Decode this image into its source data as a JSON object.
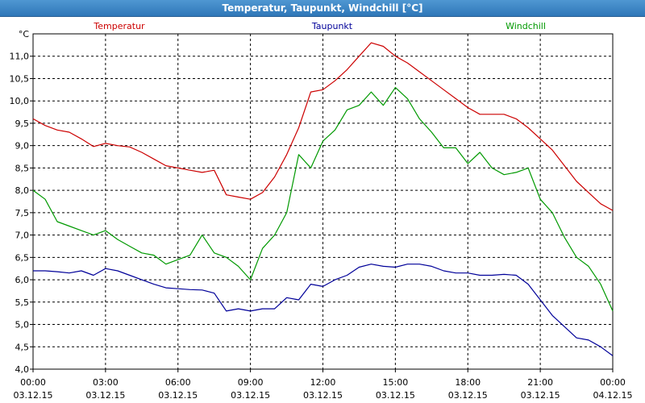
{
  "window": {
    "title": "Temperatur, Taupunkt, Windchill [°C]"
  },
  "chart_data": {
    "type": "line",
    "title": "Temperatur, Taupunkt, Windchill [°C]",
    "ylabel": "°C",
    "ylim": [
      4.0,
      11.5
    ],
    "yticks": [
      "4,0",
      "4,5",
      "5,0",
      "5,5",
      "6,0",
      "6,5",
      "7,0",
      "7,5",
      "8,0",
      "8,5",
      "9,0",
      "9,5",
      "10,0",
      "10,5",
      "11,0"
    ],
    "xlim": [
      0,
      24
    ],
    "xticks": [
      {
        "time": "00:00",
        "date": "03.12.15"
      },
      {
        "time": "03:00",
        "date": "03.12.15"
      },
      {
        "time": "06:00",
        "date": "03.12.15"
      },
      {
        "time": "09:00",
        "date": "03.12.15"
      },
      {
        "time": "12:00",
        "date": "03.12.15"
      },
      {
        "time": "15:00",
        "date": "03.12.15"
      },
      {
        "time": "18:00",
        "date": "03.12.15"
      },
      {
        "time": "21:00",
        "date": "03.12.15"
      },
      {
        "time": "00:00",
        "date": "04.12.15"
      }
    ],
    "grid": true,
    "legend_position": "top",
    "series": [
      {
        "name": "Temperatur",
        "color": "#cc0000",
        "x": [
          0,
          0.5,
          1,
          1.5,
          2,
          2.5,
          3,
          3.5,
          4,
          4.5,
          5,
          5.5,
          6,
          6.5,
          7,
          7.5,
          8,
          8.5,
          9,
          9.5,
          10,
          10.5,
          11,
          11.5,
          12,
          12.5,
          13,
          13.5,
          14,
          14.5,
          15,
          15.5,
          16,
          16.5,
          17,
          17.5,
          18,
          18.5,
          19,
          19.5,
          20,
          20.5,
          21,
          21.5,
          22,
          22.5,
          23,
          23.5,
          24
        ],
        "values": [
          9.6,
          9.45,
          9.35,
          9.3,
          9.15,
          8.98,
          9.05,
          9.0,
          8.97,
          8.85,
          8.7,
          8.55,
          8.5,
          8.45,
          8.4,
          8.45,
          7.9,
          7.85,
          7.8,
          7.95,
          8.3,
          8.8,
          9.4,
          10.2,
          10.25,
          10.45,
          10.7,
          11.0,
          11.3,
          11.22,
          11.0,
          10.85,
          10.65,
          10.45,
          10.25,
          10.05,
          9.85,
          9.7,
          9.7,
          9.7,
          9.6,
          9.4,
          9.15,
          8.9,
          8.55,
          8.2,
          7.95,
          7.7,
          7.55
        ]
      },
      {
        "name": "Taupunkt",
        "color": "#000099",
        "x": [
          0,
          0.5,
          1,
          1.5,
          2,
          2.5,
          3,
          3.5,
          4,
          4.5,
          5,
          5.5,
          6,
          6.5,
          7,
          7.5,
          8,
          8.5,
          9,
          9.5,
          10,
          10.5,
          11,
          11.5,
          12,
          12.5,
          13,
          13.5,
          14,
          14.5,
          15,
          15.5,
          16,
          16.5,
          17,
          17.5,
          18,
          18.5,
          19,
          19.5,
          20,
          20.5,
          21,
          21.5,
          22,
          22.5,
          23,
          23.5,
          24
        ],
        "values": [
          6.2,
          6.2,
          6.18,
          6.15,
          6.2,
          6.1,
          6.25,
          6.2,
          6.1,
          6.0,
          5.9,
          5.82,
          5.8,
          5.78,
          5.77,
          5.7,
          5.3,
          5.35,
          5.3,
          5.35,
          5.35,
          5.6,
          5.55,
          5.9,
          5.85,
          6.0,
          6.1,
          6.28,
          6.35,
          6.3,
          6.28,
          6.35,
          6.35,
          6.3,
          6.2,
          6.15,
          6.15,
          6.1,
          6.1,
          6.12,
          6.1,
          5.9,
          5.55,
          5.2,
          4.95,
          4.7,
          4.65,
          4.5,
          4.3
        ]
      },
      {
        "name": "Windchill",
        "color": "#009900",
        "x": [
          0,
          0.5,
          1,
          1.5,
          2,
          2.5,
          3,
          3.5,
          4,
          4.5,
          5,
          5.5,
          6,
          6.5,
          7,
          7.5,
          8,
          8.5,
          9,
          9.5,
          10,
          10.5,
          11,
          11.5,
          12,
          12.5,
          13,
          13.5,
          14,
          14.5,
          15,
          15.5,
          16,
          16.5,
          17,
          17.5,
          18,
          18.5,
          19,
          19.5,
          20,
          20.5,
          21,
          21.5,
          22,
          22.5,
          23,
          23.5,
          24
        ],
        "values": [
          8.0,
          7.8,
          7.3,
          7.2,
          7.1,
          7.0,
          7.1,
          6.9,
          6.75,
          6.6,
          6.55,
          6.35,
          6.45,
          6.55,
          7.0,
          6.6,
          6.5,
          6.3,
          6.0,
          6.7,
          7.0,
          7.5,
          8.8,
          8.5,
          9.1,
          9.35,
          9.8,
          9.9,
          10.2,
          9.9,
          10.3,
          10.05,
          9.6,
          9.3,
          8.95,
          8.95,
          8.6,
          8.85,
          8.5,
          8.35,
          8.4,
          8.5,
          7.8,
          7.5,
          6.95,
          6.5,
          6.3,
          5.9,
          5.3
        ]
      }
    ]
  }
}
